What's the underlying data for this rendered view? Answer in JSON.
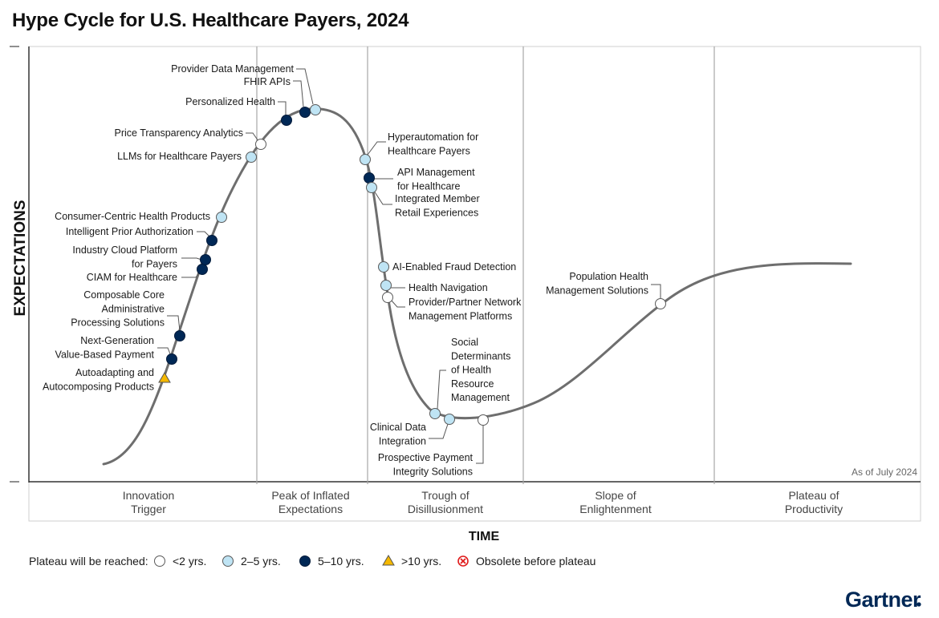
{
  "chart_data": {
    "type": "scatter",
    "title": "Hype Cycle for U.S. Healthcare Payers, 2024",
    "xlabel": "TIME",
    "ylabel": "EXPECTATIONS",
    "as_of": "As of July 2024",
    "phases": [
      "Innovation\nTrigger",
      "Peak of Inflated\nExpectations",
      "Trough of\nDisillusionment",
      "Slope of\nEnlightenment",
      "Plateau of\nProductivity"
    ],
    "legend": {
      "title": "Plateau will be reached:",
      "items": [
        {
          "key": "lt2",
          "label": "<2 yrs."
        },
        {
          "key": "2to5",
          "label": "2–5 yrs."
        },
        {
          "key": "5to10",
          "label": "5–10 yrs."
        },
        {
          "key": "gt10",
          "label": ">10 yrs."
        },
        {
          "key": "obsolete",
          "label": "Obsolete before plateau"
        }
      ]
    },
    "colors": {
      "lt2": "#ffffff",
      "2to5": "#bfe4f4",
      "5to10": "#002856",
      "gt10": "#f5b800",
      "obsolete": "#e01b1b",
      "curve": "#6e6e6e"
    },
    "points": [
      {
        "name": "Autoadapting and\nAutocomposing Products",
        "cat": "gt10"
      },
      {
        "name": "Next-Generation\nValue-Based Payment",
        "cat": "5to10"
      },
      {
        "name": "Composable Core\nAdministrative\nProcessing Solutions",
        "cat": "5to10"
      },
      {
        "name": "CIAM for Healthcare",
        "cat": "5to10"
      },
      {
        "name": "Industry Cloud Platform\nfor Payers",
        "cat": "5to10"
      },
      {
        "name": "Intelligent Prior Authorization",
        "cat": "5to10"
      },
      {
        "name": "Consumer-Centric Health Products",
        "cat": "2to5"
      },
      {
        "name": "LLMs for Healthcare Payers",
        "cat": "2to5"
      },
      {
        "name": "Price Transparency Analytics",
        "cat": "lt2"
      },
      {
        "name": "Personalized Health",
        "cat": "5to10"
      },
      {
        "name": "FHIR APIs",
        "cat": "5to10"
      },
      {
        "name": "Provider Data Management",
        "cat": "2to5"
      },
      {
        "name": "Hyperautomation for\nHealthcare Payers",
        "cat": "2to5"
      },
      {
        "name": "API Management\nfor Healthcare",
        "cat": "5to10"
      },
      {
        "name": "Integrated Member\nRetail Experiences",
        "cat": "2to5"
      },
      {
        "name": "AI-Enabled Fraud Detection",
        "cat": "2to5"
      },
      {
        "name": "Health Navigation",
        "cat": "2to5"
      },
      {
        "name": "Provider/Partner Network\nManagement Platforms",
        "cat": "lt2"
      },
      {
        "name": "Social\nDeterminants\nof Health\nResource\nManagement",
        "cat": "2to5"
      },
      {
        "name": "Clinical Data\nIntegration",
        "cat": "2to5"
      },
      {
        "name": "Prospective Payment\nIntegrity Solutions",
        "cat": "lt2"
      },
      {
        "name": "Population Health\nManagement Solutions",
        "cat": "lt2"
      }
    ]
  },
  "brand": "Gartner"
}
